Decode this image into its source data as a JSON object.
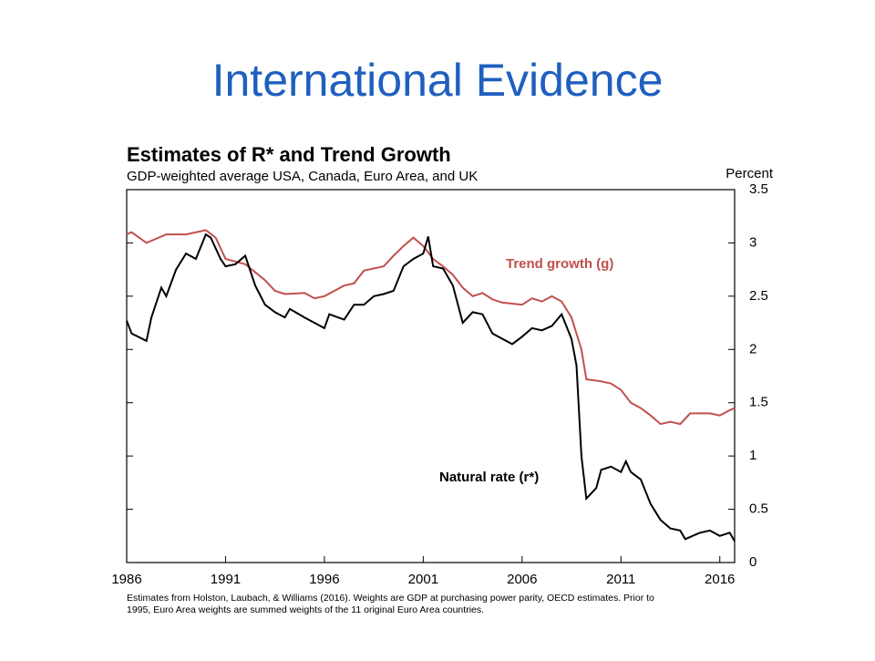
{
  "slide": {
    "title": "International Evidence"
  },
  "chart_data": {
    "type": "line",
    "title": "Estimates of R* and Trend Growth",
    "subtitle": "GDP-weighted average USA, Canada, Euro Area, and UK",
    "y_axis_label": "Percent",
    "notes": [
      "Estimates from Holston, Laubach, & Williams (2016). Weights are GDP at purchasing power parity, OECD estimates. Prior to",
      "1995, Euro Area weights are summed weights of the 11 original Euro Area countries."
    ],
    "annotations": [
      {
        "text": "Trend growth (g)",
        "series": 0
      },
      {
        "text": "Natural rate (r*)",
        "series": 1
      }
    ],
    "xlim": [
      1986,
      2016.75
    ],
    "xticks": [
      1986,
      1991,
      1996,
      2001,
      2006,
      2011,
      2016
    ],
    "ylim": [
      0,
      3.5
    ],
    "yticks": [
      0,
      0.5,
      1,
      1.5,
      2,
      2.5,
      3,
      3.5
    ],
    "y_axis_side": "right",
    "series": [
      {
        "name": "Trend growth (g)",
        "color": "#c0504d",
        "x": [
          1986,
          1986.25,
          1987,
          1988,
          1989,
          1990,
          1990.5,
          1991,
          1992,
          1993,
          1993.5,
          1994,
          1995,
          1995.5,
          1996,
          1997,
          1997.5,
          1998,
          1999,
          1999.5,
          2000,
          2000.5,
          2001,
          2001.5,
          2002,
          2002.5,
          2003,
          2003.5,
          2004,
          2004.5,
          2005,
          2006,
          2006.5,
          2007,
          2007.5,
          2008,
          2008.5,
          2009,
          2009.25,
          2010,
          2010.5,
          2011,
          2011.5,
          2012,
          2012.5,
          2013,
          2013.5,
          2014,
          2014.5,
          2015,
          2015.5,
          2016,
          2016.5,
          2016.75
        ],
        "values": [
          3.08,
          3.1,
          3.0,
          3.08,
          3.08,
          3.12,
          3.05,
          2.85,
          2.8,
          2.65,
          2.55,
          2.52,
          2.53,
          2.48,
          2.5,
          2.6,
          2.62,
          2.74,
          2.78,
          2.88,
          2.97,
          3.05,
          2.97,
          2.85,
          2.78,
          2.7,
          2.58,
          2.5,
          2.53,
          2.47,
          2.44,
          2.42,
          2.48,
          2.45,
          2.5,
          2.45,
          2.3,
          2.0,
          1.72,
          1.7,
          1.68,
          1.62,
          1.5,
          1.45,
          1.38,
          1.3,
          1.32,
          1.3,
          1.4,
          1.4,
          1.4,
          1.38,
          1.43,
          1.45
        ]
      },
      {
        "name": "Natural rate (r*)",
        "color": "#000000",
        "x": [
          1986,
          1986.25,
          1987,
          1987.25,
          1987.75,
          1988,
          1988.5,
          1989,
          1989.5,
          1990,
          1990.25,
          1990.75,
          1991,
          1991.5,
          1992,
          1992.5,
          1993,
          1993.5,
          1994,
          1994.25,
          1995,
          1995.5,
          1996,
          1996.25,
          1997,
          1997.5,
          1998,
          1998.5,
          1999,
          1999.5,
          2000,
          2000.5,
          2001,
          2001.25,
          2001.5,
          2002,
          2002.5,
          2003,
          2003.5,
          2004,
          2004.5,
          2005,
          2005.5,
          2006,
          2006.5,
          2007,
          2007.5,
          2008,
          2008.5,
          2008.75,
          2009,
          2009.25,
          2009.75,
          2010,
          2010.5,
          2011,
          2011.25,
          2011.5,
          2012,
          2012.5,
          2013,
          2013.5,
          2014,
          2014.25,
          2015,
          2015.5,
          2016,
          2016.5,
          2016.75
        ],
        "values": [
          2.27,
          2.15,
          2.08,
          2.3,
          2.58,
          2.5,
          2.75,
          2.9,
          2.85,
          3.08,
          3.05,
          2.85,
          2.78,
          2.8,
          2.88,
          2.6,
          2.42,
          2.35,
          2.3,
          2.38,
          2.3,
          2.25,
          2.2,
          2.33,
          2.28,
          2.42,
          2.42,
          2.5,
          2.52,
          2.55,
          2.78,
          2.85,
          2.9,
          3.06,
          2.78,
          2.76,
          2.6,
          2.25,
          2.35,
          2.33,
          2.15,
          2.1,
          2.05,
          2.12,
          2.2,
          2.18,
          2.22,
          2.33,
          2.1,
          1.85,
          1.0,
          0.6,
          0.7,
          0.87,
          0.9,
          0.85,
          0.95,
          0.85,
          0.78,
          0.55,
          0.4,
          0.32,
          0.3,
          0.22,
          0.28,
          0.3,
          0.25,
          0.28,
          0.2
        ]
      }
    ]
  }
}
